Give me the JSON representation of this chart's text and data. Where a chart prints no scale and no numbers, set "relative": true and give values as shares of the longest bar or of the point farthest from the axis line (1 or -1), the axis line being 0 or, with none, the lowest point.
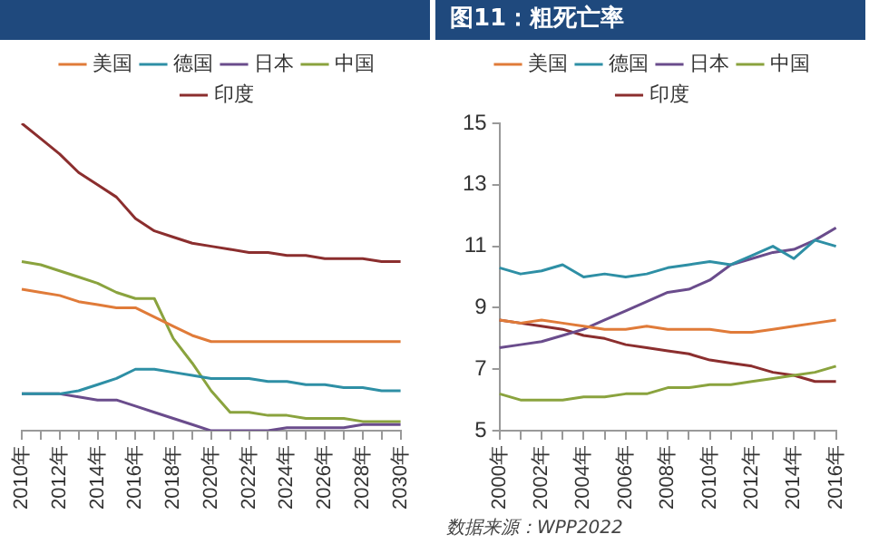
{
  "chart_data": [
    {
      "type": "line",
      "relative": true,
      "legend": "top",
      "marker": "none",
      "line_style": "solid",
      "categories": [
        "2010年",
        null,
        "2012年",
        null,
        "2014年",
        null,
        "2016年",
        null,
        "2018年",
        null,
        "2020年",
        null,
        "2022年",
        null,
        "2024年",
        null,
        "2026年",
        null,
        "2028年",
        null,
        "2030年"
      ],
      "series": [
        {
          "name": "美国",
          "color": "#e07b39",
          "values": [
            0.46,
            0.45,
            0.44,
            0.42,
            0.41,
            0.4,
            0.4,
            0.37,
            0.34,
            0.31,
            0.29,
            0.29,
            0.29,
            0.29,
            0.29,
            0.29,
            0.29,
            0.29,
            0.29,
            0.29,
            0.29
          ]
        },
        {
          "name": "德国",
          "color": "#2e8fa5",
          "values": [
            0.12,
            0.12,
            0.12,
            0.13,
            0.15,
            0.17,
            0.2,
            0.2,
            0.19,
            0.18,
            0.17,
            0.17,
            0.17,
            0.16,
            0.16,
            0.15,
            0.15,
            0.14,
            0.14,
            0.13,
            0.13
          ]
        },
        {
          "name": "日本",
          "color": "#6a4c8c",
          "values": [
            0.12,
            0.12,
            0.12,
            0.11,
            0.1,
            0.1,
            0.08,
            0.06,
            0.04,
            0.02,
            0,
            0,
            0,
            0,
            0.01,
            0.01,
            0.01,
            0.01,
            0.02,
            0.02,
            0.02
          ]
        },
        {
          "name": "中国",
          "color": "#8aa33e",
          "values": [
            0.55,
            0.54,
            0.52,
            0.5,
            0.48,
            0.45,
            0.43,
            0.43,
            0.3,
            0.22,
            0.13,
            0.06,
            0.06,
            0.05,
            0.05,
            0.04,
            0.04,
            0.04,
            0.03,
            0.03,
            0.03
          ]
        },
        {
          "name": "印度",
          "color": "#8b2e2e",
          "values": [
            1,
            0.95,
            0.9,
            0.84,
            0.8,
            0.76,
            0.69,
            0.65,
            0.63,
            0.61,
            0.6,
            0.59,
            0.58,
            0.58,
            0.57,
            0.57,
            0.56,
            0.56,
            0.56,
            0.55,
            0.55
          ]
        }
      ]
    },
    {
      "type": "line",
      "title": "图11：粗死亡率",
      "legend": "top",
      "marker": "none",
      "line_style": "solid",
      "ylim": [
        5,
        15
      ],
      "yticks": [
        5,
        7,
        9,
        11,
        13,
        15
      ],
      "categories": [
        "2000年",
        null,
        "2002年",
        null,
        "2004年",
        null,
        "2006年",
        null,
        "2008年",
        null,
        "2010年",
        null,
        "2012年",
        null,
        "2014年",
        null,
        "2016年"
      ],
      "series": [
        {
          "name": "美国",
          "color": "#e07b39",
          "values": [
            8.6,
            8.5,
            8.6,
            8.5,
            8.4,
            8.3,
            8.3,
            8.4,
            8.3,
            8.3,
            8.3,
            8.2,
            8.2,
            8.3,
            8.4,
            8.5,
            8.6
          ]
        },
        {
          "name": "德国",
          "color": "#2e8fa5",
          "values": [
            10.3,
            10.1,
            10.2,
            10.4,
            10.0,
            10.1,
            10.0,
            10.1,
            10.3,
            10.4,
            10.5,
            10.4,
            10.7,
            11.0,
            10.6,
            11.2,
            11.0
          ]
        },
        {
          "name": "日本",
          "color": "#6a4c8c",
          "values": [
            7.7,
            7.8,
            7.9,
            8.1,
            8.3,
            8.6,
            8.9,
            9.2,
            9.5,
            9.6,
            9.9,
            10.4,
            10.6,
            10.8,
            10.9,
            11.2,
            11.6
          ]
        },
        {
          "name": "中国",
          "color": "#8aa33e",
          "values": [
            6.2,
            6.0,
            6.0,
            6.0,
            6.1,
            6.1,
            6.2,
            6.2,
            6.4,
            6.4,
            6.5,
            6.5,
            6.6,
            6.7,
            6.8,
            6.9,
            7.1
          ]
        },
        {
          "name": "印度",
          "color": "#8b2e2e",
          "values": [
            8.6,
            8.5,
            8.4,
            8.3,
            8.1,
            8.0,
            7.8,
            7.7,
            7.6,
            7.5,
            7.3,
            7.2,
            7.1,
            6.9,
            6.8,
            6.6,
            6.6
          ]
        }
      ],
      "annotations": [
        "数据来源：WPP2022"
      ]
    }
  ]
}
